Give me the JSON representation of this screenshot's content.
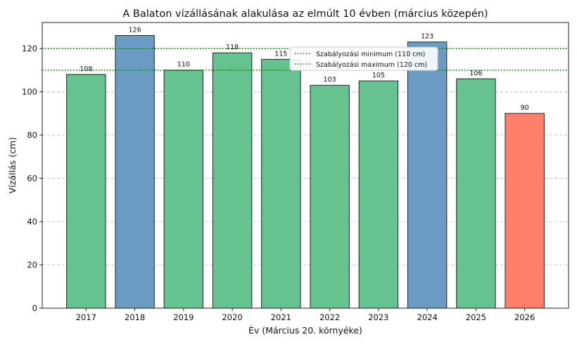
{
  "chart_data": {
    "type": "bar",
    "title": "A Balaton vízállásának alakulása az elmúlt 10 évben (március közepén)",
    "xlabel": "Év (Március 20. környéke)",
    "ylabel": "Vízállás (cm)",
    "categories": [
      "2017",
      "2018",
      "2019",
      "2020",
      "2021",
      "2022",
      "2023",
      "2024",
      "2025",
      "2026"
    ],
    "values": [
      108,
      126,
      110,
      118,
      115,
      103,
      105,
      123,
      106,
      90
    ],
    "bar_colors": [
      "#66c28e",
      "#6a9bc3",
      "#66c28e",
      "#66c28e",
      "#66c28e",
      "#66c28e",
      "#66c28e",
      "#6a9bc3",
      "#66c28e",
      "#ff7f6a"
    ],
    "ylim": [
      0,
      132
    ],
    "yticks": [
      0,
      20,
      40,
      60,
      80,
      100,
      120
    ],
    "grid": "y dashed",
    "reference_lines": [
      {
        "name": "Szabályozási minimum (110 cm)",
        "value": 110,
        "color": "#008000",
        "style": "dotted"
      },
      {
        "name": "Szabályozási maximum (120 cm)",
        "value": 120,
        "color": "#008000",
        "style": "dotted"
      }
    ],
    "legend_placement": "top-left"
  }
}
